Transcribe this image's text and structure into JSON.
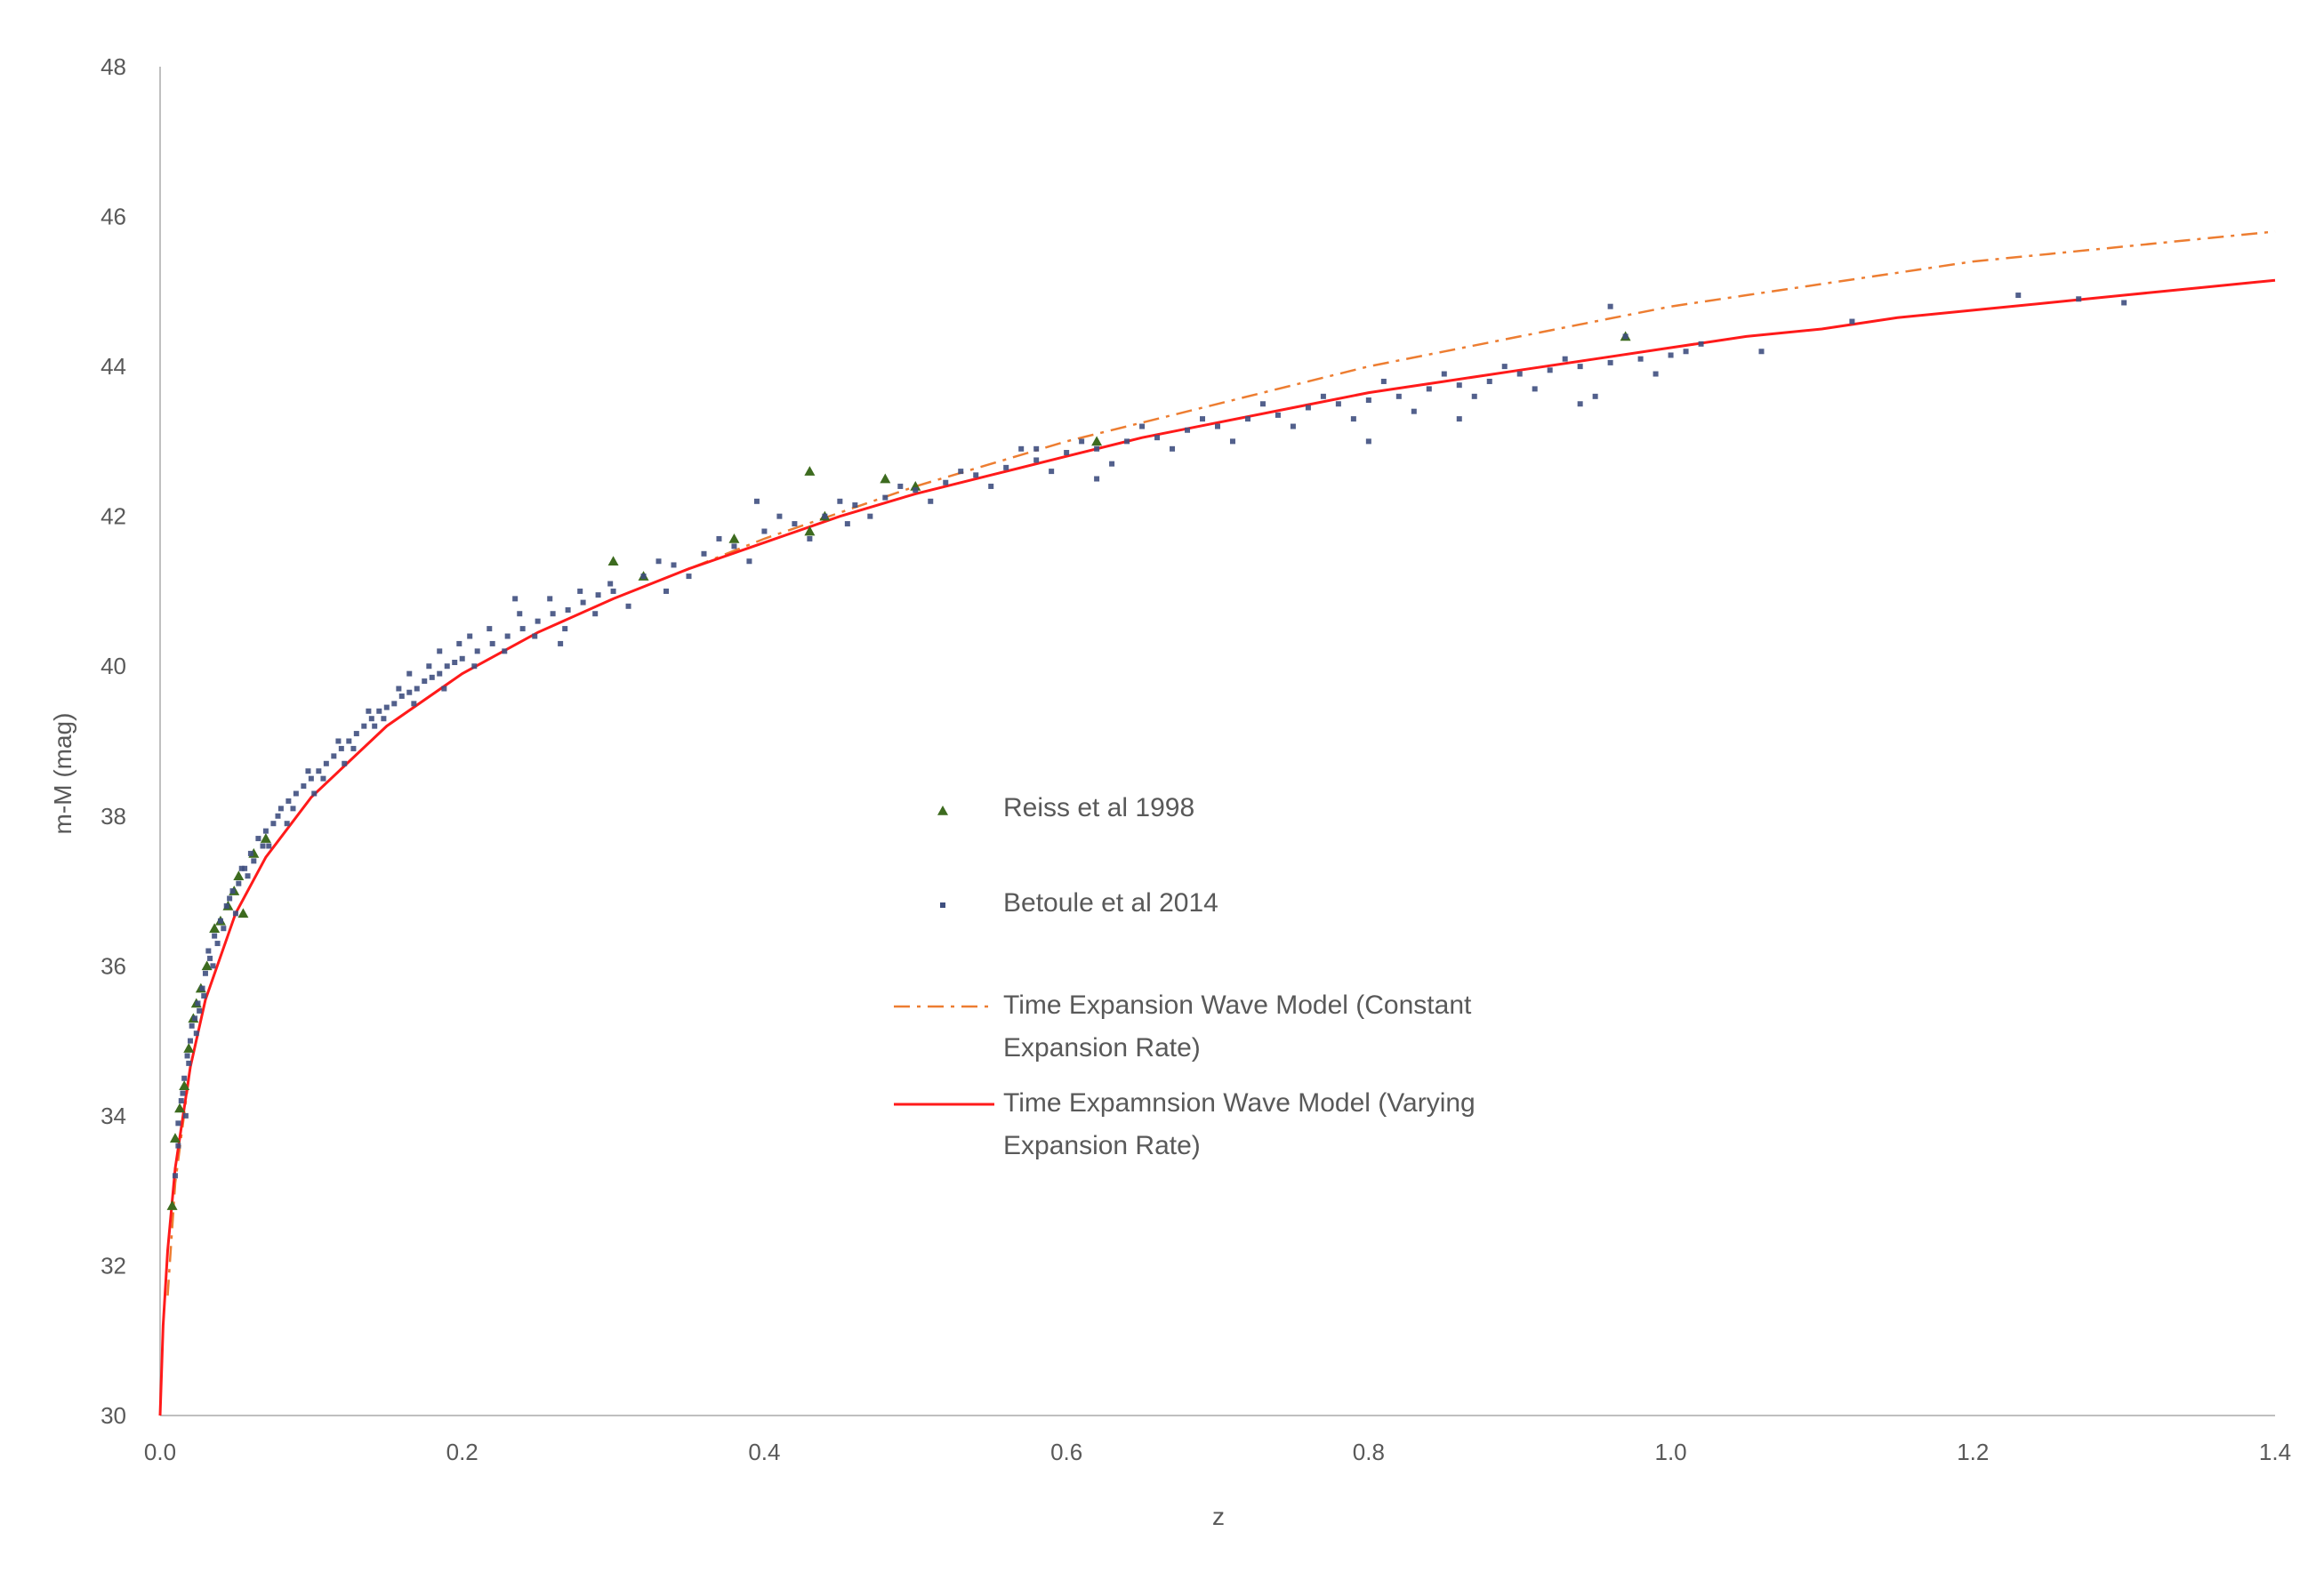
{
  "chart_data": {
    "type": "scatter",
    "title": "",
    "xlabel": "z",
    "ylabel": "m-M (mag)",
    "xlim": [
      0.0,
      1.4
    ],
    "ylim": [
      30,
      48
    ],
    "x_ticks": [
      "0.0",
      "0.2",
      "0.4",
      "0.6",
      "0.8",
      "1.0",
      "1.2",
      "1.4"
    ],
    "y_ticks": [
      "30",
      "32",
      "34",
      "36",
      "38",
      "40",
      "42",
      "44",
      "46",
      "48"
    ],
    "grid": false,
    "legend_position": "center",
    "colors": {
      "reiss": "#3d6b1f",
      "betoule": "#3f4f7f",
      "constant": "#ed7d31",
      "varying": "#ff1a1a",
      "axis": "#bfbfbf"
    },
    "legend": [
      {
        "key": "reiss",
        "lines": [
          "Reiss et al 1998"
        ]
      },
      {
        "key": "betoule",
        "lines": [
          "Betoule et al 2014"
        ]
      },
      {
        "key": "constant",
        "lines": [
          "Time Expansion Wave Model (Constant",
          "Expansion Rate)"
        ]
      },
      {
        "key": "varying",
        "lines": [
          "Time Expamnsion Wave Model (Varying",
          "Expansion Rate)"
        ]
      }
    ],
    "series": [
      {
        "name": "Reiss et al 1998",
        "key": "reiss",
        "type": "scatter",
        "marker": "triangle",
        "points": [
          [
            0.008,
            32.8
          ],
          [
            0.01,
            33.7
          ],
          [
            0.013,
            34.1
          ],
          [
            0.016,
            34.4
          ],
          [
            0.019,
            34.9
          ],
          [
            0.022,
            35.3
          ],
          [
            0.024,
            35.5
          ],
          [
            0.027,
            35.7
          ],
          [
            0.031,
            36.0
          ],
          [
            0.036,
            36.5
          ],
          [
            0.04,
            36.6
          ],
          [
            0.045,
            36.8
          ],
          [
            0.049,
            37.0
          ],
          [
            0.052,
            37.2
          ],
          [
            0.055,
            36.7
          ],
          [
            0.062,
            37.5
          ],
          [
            0.07,
            37.7
          ],
          [
            0.3,
            41.4
          ],
          [
            0.32,
            41.2
          ],
          [
            0.38,
            41.7
          ],
          [
            0.43,
            42.6
          ],
          [
            0.43,
            41.8
          ],
          [
            0.44,
            42.0
          ],
          [
            0.48,
            42.5
          ],
          [
            0.5,
            42.4
          ],
          [
            0.62,
            43.0
          ],
          [
            0.97,
            44.4
          ]
        ]
      },
      {
        "name": "Betoule et al 2014",
        "key": "betoule",
        "type": "scatter",
        "marker": "square",
        "points": [
          [
            0.01,
            33.2
          ],
          [
            0.012,
            33.9
          ],
          [
            0.014,
            34.2
          ],
          [
            0.016,
            34.5
          ],
          [
            0.018,
            34.8
          ],
          [
            0.02,
            35.0
          ],
          [
            0.023,
            35.3
          ],
          [
            0.025,
            35.5
          ],
          [
            0.028,
            35.7
          ],
          [
            0.03,
            35.9
          ],
          [
            0.033,
            36.1
          ],
          [
            0.036,
            36.4
          ],
          [
            0.04,
            36.6
          ],
          [
            0.044,
            36.8
          ],
          [
            0.048,
            37.0
          ],
          [
            0.052,
            37.1
          ],
          [
            0.056,
            37.3
          ],
          [
            0.06,
            37.5
          ],
          [
            0.065,
            37.7
          ],
          [
            0.07,
            37.8
          ],
          [
            0.075,
            37.9
          ],
          [
            0.08,
            38.1
          ],
          [
            0.085,
            38.2
          ],
          [
            0.09,
            38.3
          ],
          [
            0.095,
            38.4
          ],
          [
            0.1,
            38.5
          ],
          [
            0.105,
            38.6
          ],
          [
            0.11,
            38.7
          ],
          [
            0.115,
            38.8
          ],
          [
            0.12,
            38.9
          ],
          [
            0.125,
            39.0
          ],
          [
            0.13,
            39.1
          ],
          [
            0.135,
            39.2
          ],
          [
            0.14,
            39.3
          ],
          [
            0.145,
            39.4
          ],
          [
            0.15,
            39.45
          ],
          [
            0.155,
            39.5
          ],
          [
            0.16,
            39.6
          ],
          [
            0.165,
            39.65
          ],
          [
            0.17,
            39.7
          ],
          [
            0.175,
            39.8
          ],
          [
            0.18,
            39.85
          ],
          [
            0.185,
            39.9
          ],
          [
            0.19,
            40.0
          ],
          [
            0.195,
            40.05
          ],
          [
            0.2,
            40.1
          ],
          [
            0.21,
            40.2
          ],
          [
            0.22,
            40.3
          ],
          [
            0.23,
            40.4
          ],
          [
            0.24,
            40.5
          ],
          [
            0.25,
            40.6
          ],
          [
            0.26,
            40.7
          ],
          [
            0.27,
            40.75
          ],
          [
            0.28,
            40.85
          ],
          [
            0.29,
            40.95
          ],
          [
            0.3,
            41.0
          ],
          [
            0.32,
            41.2
          ],
          [
            0.34,
            41.35
          ],
          [
            0.36,
            41.5
          ],
          [
            0.38,
            41.6
          ],
          [
            0.4,
            41.8
          ],
          [
            0.42,
            41.9
          ],
          [
            0.44,
            42.0
          ],
          [
            0.46,
            42.15
          ],
          [
            0.48,
            42.25
          ],
          [
            0.5,
            42.35
          ],
          [
            0.52,
            42.45
          ],
          [
            0.54,
            42.55
          ],
          [
            0.56,
            42.65
          ],
          [
            0.58,
            42.75
          ],
          [
            0.6,
            42.85
          ],
          [
            0.62,
            42.9
          ],
          [
            0.64,
            43.0
          ],
          [
            0.66,
            43.05
          ],
          [
            0.68,
            43.15
          ],
          [
            0.7,
            43.2
          ],
          [
            0.72,
            43.3
          ],
          [
            0.74,
            43.35
          ],
          [
            0.76,
            43.45
          ],
          [
            0.78,
            43.5
          ],
          [
            0.8,
            43.55
          ],
          [
            0.82,
            43.6
          ],
          [
            0.84,
            43.7
          ],
          [
            0.86,
            43.75
          ],
          [
            0.88,
            43.8
          ],
          [
            0.9,
            43.9
          ],
          [
            0.92,
            43.95
          ],
          [
            0.94,
            44.0
          ],
          [
            0.96,
            44.05
          ],
          [
            0.98,
            44.1
          ],
          [
            1.0,
            44.15
          ],
          [
            1.02,
            44.3
          ],
          [
            1.06,
            44.2
          ],
          [
            1.12,
            44.6
          ],
          [
            1.23,
            44.95
          ],
          [
            1.27,
            44.9
          ],
          [
            1.3,
            44.85
          ],
          [
            0.017,
            34.0
          ],
          [
            0.021,
            35.2
          ],
          [
            0.026,
            35.4
          ],
          [
            0.032,
            36.2
          ],
          [
            0.038,
            36.3
          ],
          [
            0.046,
            36.9
          ],
          [
            0.054,
            37.3
          ],
          [
            0.062,
            37.4
          ],
          [
            0.068,
            37.6
          ],
          [
            0.078,
            38.0
          ],
          [
            0.088,
            38.1
          ],
          [
            0.098,
            38.6
          ],
          [
            0.108,
            38.5
          ],
          [
            0.118,
            39.0
          ],
          [
            0.128,
            38.9
          ],
          [
            0.138,
            39.4
          ],
          [
            0.148,
            39.3
          ],
          [
            0.158,
            39.7
          ],
          [
            0.168,
            39.5
          ],
          [
            0.178,
            40.0
          ],
          [
            0.188,
            39.7
          ],
          [
            0.198,
            40.3
          ],
          [
            0.208,
            40.0
          ],
          [
            0.218,
            40.5
          ],
          [
            0.228,
            40.2
          ],
          [
            0.238,
            40.7
          ],
          [
            0.248,
            40.4
          ],
          [
            0.258,
            40.9
          ],
          [
            0.268,
            40.5
          ],
          [
            0.278,
            41.0
          ],
          [
            0.288,
            40.7
          ],
          [
            0.298,
            41.1
          ],
          [
            0.31,
            40.8
          ],
          [
            0.33,
            41.4
          ],
          [
            0.35,
            41.2
          ],
          [
            0.37,
            41.7
          ],
          [
            0.39,
            41.4
          ],
          [
            0.41,
            42.0
          ],
          [
            0.43,
            41.7
          ],
          [
            0.45,
            42.2
          ],
          [
            0.47,
            42.0
          ],
          [
            0.49,
            42.4
          ],
          [
            0.51,
            42.2
          ],
          [
            0.53,
            42.6
          ],
          [
            0.55,
            42.4
          ],
          [
            0.57,
            42.9
          ],
          [
            0.59,
            42.6
          ],
          [
            0.61,
            43.0
          ],
          [
            0.63,
            42.7
          ],
          [
            0.65,
            43.2
          ],
          [
            0.67,
            42.9
          ],
          [
            0.69,
            43.3
          ],
          [
            0.71,
            43.0
          ],
          [
            0.73,
            43.5
          ],
          [
            0.75,
            43.2
          ],
          [
            0.77,
            43.6
          ],
          [
            0.79,
            43.3
          ],
          [
            0.81,
            43.8
          ],
          [
            0.83,
            43.4
          ],
          [
            0.85,
            43.9
          ],
          [
            0.87,
            43.6
          ],
          [
            0.89,
            44.0
          ],
          [
            0.91,
            43.7
          ],
          [
            0.93,
            44.1
          ],
          [
            0.95,
            43.6
          ],
          [
            0.97,
            44.4
          ],
          [
            0.99,
            43.9
          ],
          [
            1.01,
            44.2
          ],
          [
            0.96,
            44.8
          ],
          [
            0.94,
            43.5
          ],
          [
            0.8,
            43.0
          ],
          [
            0.86,
            43.3
          ],
          [
            0.58,
            42.9
          ],
          [
            0.62,
            42.5
          ],
          [
            0.455,
            41.9
          ],
          [
            0.395,
            42.2
          ],
          [
            0.335,
            41.0
          ],
          [
            0.265,
            40.3
          ],
          [
            0.235,
            40.9
          ],
          [
            0.205,
            40.4
          ],
          [
            0.185,
            40.2
          ],
          [
            0.165,
            39.9
          ],
          [
            0.142,
            39.2
          ],
          [
            0.122,
            38.7
          ],
          [
            0.102,
            38.3
          ],
          [
            0.084,
            37.9
          ],
          [
            0.072,
            37.6
          ],
          [
            0.058,
            37.2
          ],
          [
            0.05,
            36.7
          ],
          [
            0.042,
            36.5
          ],
          [
            0.035,
            36.0
          ],
          [
            0.029,
            35.6
          ],
          [
            0.024,
            35.1
          ],
          [
            0.019,
            34.7
          ],
          [
            0.015,
            34.3
          ],
          [
            0.012,
            33.6
          ]
        ]
      },
      {
        "name": "Time Expansion Wave Model (Constant Expansion Rate)",
        "key": "constant",
        "type": "line",
        "style": "dash-dot",
        "x": [
          0.005,
          0.01,
          0.02,
          0.03,
          0.05,
          0.07,
          0.1,
          0.15,
          0.2,
          0.25,
          0.3,
          0.35,
          0.4,
          0.45,
          0.5,
          0.55,
          0.6,
          0.65,
          0.7,
          0.75,
          0.8,
          0.85,
          0.9,
          0.95,
          1.0,
          1.05,
          1.1,
          1.15,
          1.2,
          1.25,
          1.3,
          1.35,
          1.4
        ],
        "y": [
          31.6,
          33.1,
          34.65,
          35.55,
          36.7,
          37.45,
          38.25,
          39.2,
          39.9,
          40.45,
          40.9,
          41.3,
          41.7,
          42.05,
          42.4,
          42.7,
          43.0,
          43.25,
          43.5,
          43.75,
          44.0,
          44.2,
          44.4,
          44.6,
          44.8,
          44.95,
          45.1,
          45.25,
          45.4,
          45.5,
          45.6,
          45.7,
          45.8
        ]
      },
      {
        "name": "Time Expamnsion Wave Model (Varying Expansion Rate)",
        "key": "varying",
        "type": "line",
        "style": "solid",
        "x": [
          0.0,
          0.002,
          0.005,
          0.01,
          0.02,
          0.03,
          0.05,
          0.07,
          0.1,
          0.15,
          0.2,
          0.25,
          0.3,
          0.35,
          0.4,
          0.45,
          0.5,
          0.55,
          0.6,
          0.65,
          0.7,
          0.75,
          0.8,
          0.85,
          0.9,
          0.95,
          1.0,
          1.05,
          1.1,
          1.15,
          1.2,
          1.25,
          1.3,
          1.35,
          1.4
        ],
        "y": [
          30.0,
          31.2,
          32.2,
          33.3,
          34.65,
          35.55,
          36.7,
          37.45,
          38.25,
          39.2,
          39.9,
          40.45,
          40.9,
          41.3,
          41.65,
          42.0,
          42.3,
          42.55,
          42.8,
          43.05,
          43.25,
          43.45,
          43.65,
          43.8,
          43.95,
          44.1,
          44.25,
          44.4,
          44.5,
          44.65,
          44.75,
          44.85,
          44.95,
          45.05,
          45.15
        ]
      }
    ]
  }
}
